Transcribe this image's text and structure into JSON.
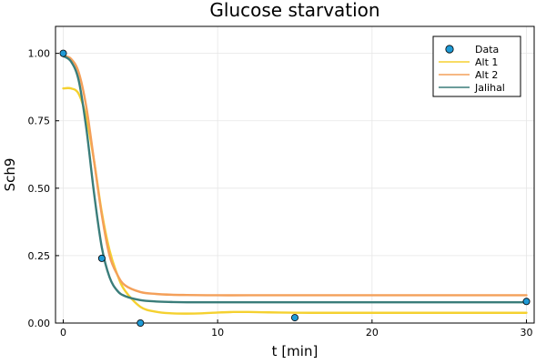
{
  "chart_data": {
    "type": "line",
    "title": "Glucose starvation",
    "xlabel": "t [min]",
    "ylabel": "Sch9",
    "xlim": [
      -0.5,
      30.5
    ],
    "ylim": [
      0,
      1.1
    ],
    "xticks": [
      0,
      10,
      20,
      30
    ],
    "xtick_labels": [
      "0",
      "10",
      "20",
      "30"
    ],
    "yticks": [
      0,
      0.25,
      0.5,
      0.75,
      1.0
    ],
    "ytick_labels": [
      "0.00",
      "0.25",
      "0.50",
      "0.75",
      "1.00"
    ],
    "grid": true,
    "legend_position": "top-right",
    "scatter": {
      "name": "Data",
      "color": "#1f9ad6",
      "x": [
        0,
        2.5,
        5,
        15,
        30
      ],
      "y": [
        1.0,
        0.24,
        0.0,
        0.02,
        0.08
      ]
    },
    "series": [
      {
        "name": "Alt 1",
        "color": "#f5d130",
        "x": [
          0,
          0.5,
          1,
          1.5,
          2,
          2.5,
          3,
          3.5,
          4,
          5,
          6,
          7,
          8,
          9,
          10,
          11,
          12,
          13,
          14,
          16,
          18,
          20,
          25,
          30
        ],
        "y": [
          0.87,
          0.87,
          0.85,
          0.76,
          0.6,
          0.41,
          0.27,
          0.18,
          0.12,
          0.06,
          0.042,
          0.036,
          0.035,
          0.036,
          0.039,
          0.041,
          0.041,
          0.04,
          0.039,
          0.038,
          0.038,
          0.038,
          0.038,
          0.038
        ]
      },
      {
        "name": "Alt 2",
        "color": "#f4a05a",
        "x": [
          0,
          0.5,
          1,
          1.5,
          2,
          2.5,
          3,
          3.5,
          4,
          5,
          6,
          7,
          8,
          10,
          12,
          15,
          20,
          25,
          30
        ],
        "y": [
          0.99,
          0.98,
          0.93,
          0.8,
          0.6,
          0.4,
          0.25,
          0.18,
          0.14,
          0.115,
          0.108,
          0.105,
          0.104,
          0.103,
          0.103,
          0.103,
          0.103,
          0.103,
          0.103
        ]
      },
      {
        "name": "Jalihal",
        "color": "#3a7d7a",
        "x": [
          0,
          0.5,
          1,
          1.5,
          2,
          2.5,
          3,
          3.5,
          4,
          5,
          6,
          7,
          8,
          10,
          12,
          15,
          20,
          25,
          30
        ],
        "y": [
          0.99,
          0.97,
          0.9,
          0.72,
          0.48,
          0.28,
          0.17,
          0.12,
          0.1,
          0.085,
          0.08,
          0.078,
          0.077,
          0.077,
          0.077,
          0.077,
          0.077,
          0.077,
          0.077
        ]
      }
    ]
  }
}
